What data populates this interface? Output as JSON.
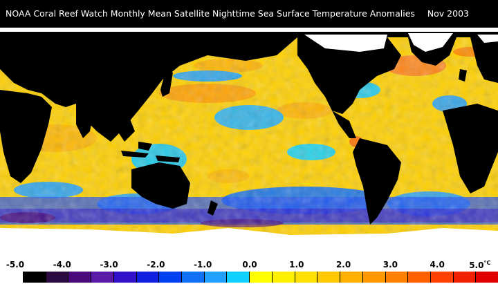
{
  "title": "NOAA Coral Reef Watch Monthly Mean Satellite Nighttime Sea Surface Temperature Anomalies",
  "date": "Nov 2003",
  "legend": {
    "tick_labels": [
      "-5.0",
      "-4.0",
      "-3.0",
      "-2.0",
      "-1.0",
      "0.0",
      "1.0",
      "2.0",
      "3.0",
      "4.0",
      "5.0"
    ],
    "unit": "°C",
    "colors": [
      "#000000",
      "#2a0a40",
      "#4a0a7a",
      "#5a1aa8",
      "#3010c8",
      "#1020e0",
      "#0040f0",
      "#1070f8",
      "#20a0ff",
      "#10d0ff",
      "#ffff00",
      "#fff000",
      "#ffe000",
      "#ffc800",
      "#ffb000",
      "#ff9800",
      "#ff8000",
      "#ff6000",
      "#ff4000",
      "#f02000",
      "#e00000"
    ]
  },
  "colors": {
    "land": "#000000",
    "ice": "#ffffff",
    "ocean_base": "#ffd000"
  }
}
